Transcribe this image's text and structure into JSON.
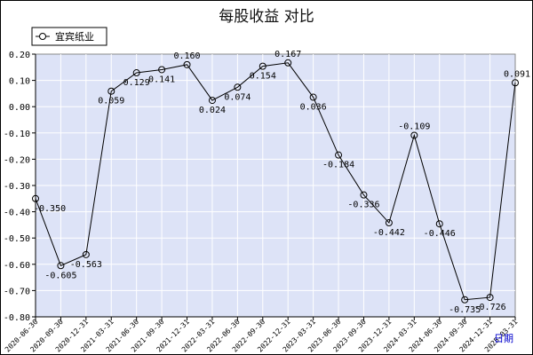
{
  "chart_data": {
    "type": "line",
    "title": "每股收益  对比",
    "xlabel": "日期",
    "ylabel": "",
    "ylim": [
      -0.8,
      0.2
    ],
    "yticks": [
      "0.20",
      "0.10",
      "0.00",
      "-0.10",
      "-0.20",
      "-0.30",
      "-0.40",
      "-0.50",
      "-0.60",
      "-0.70",
      "-0.80"
    ],
    "categories": [
      "2020-06-30",
      "2020-09-30",
      "2020-12-31",
      "2021-03-31",
      "2021-06-30",
      "2021-09-30",
      "2021-12-31",
      "2022-03-31",
      "2022-06-30",
      "2022-09-30",
      "2022-12-31",
      "2023-03-31",
      "2023-06-30",
      "2023-09-30",
      "2023-12-31",
      "2024-03-31",
      "2024-06-30",
      "2024-09-30",
      "2024-12-31",
      "2025-03-31"
    ],
    "series": [
      {
        "name": "宜宾纸业",
        "values": [
          -0.35,
          -0.605,
          -0.563,
          0.059,
          0.129,
          0.141,
          0.16,
          0.024,
          0.074,
          0.154,
          0.167,
          0.036,
          -0.184,
          -0.336,
          -0.442,
          -0.109,
          -0.446,
          -0.735,
          -0.726,
          0.091
        ],
        "labels": [
          "-0.350",
          "-0.605",
          "-0.563",
          "0.059",
          "0.129",
          "0.141",
          "0.160",
          "0.024",
          "0.074",
          "0.154",
          "0.167",
          "0.036",
          "-0.184",
          "-0.336",
          "-0.442",
          "-0.109",
          "-0.446",
          "-0.735",
          "-0.726",
          "0.091"
        ]
      }
    ],
    "grid": true,
    "legend": "top-left",
    "colors": {
      "plot_bg": "#dde3f7",
      "grid": "#ffffff",
      "line": "#000000"
    }
  }
}
